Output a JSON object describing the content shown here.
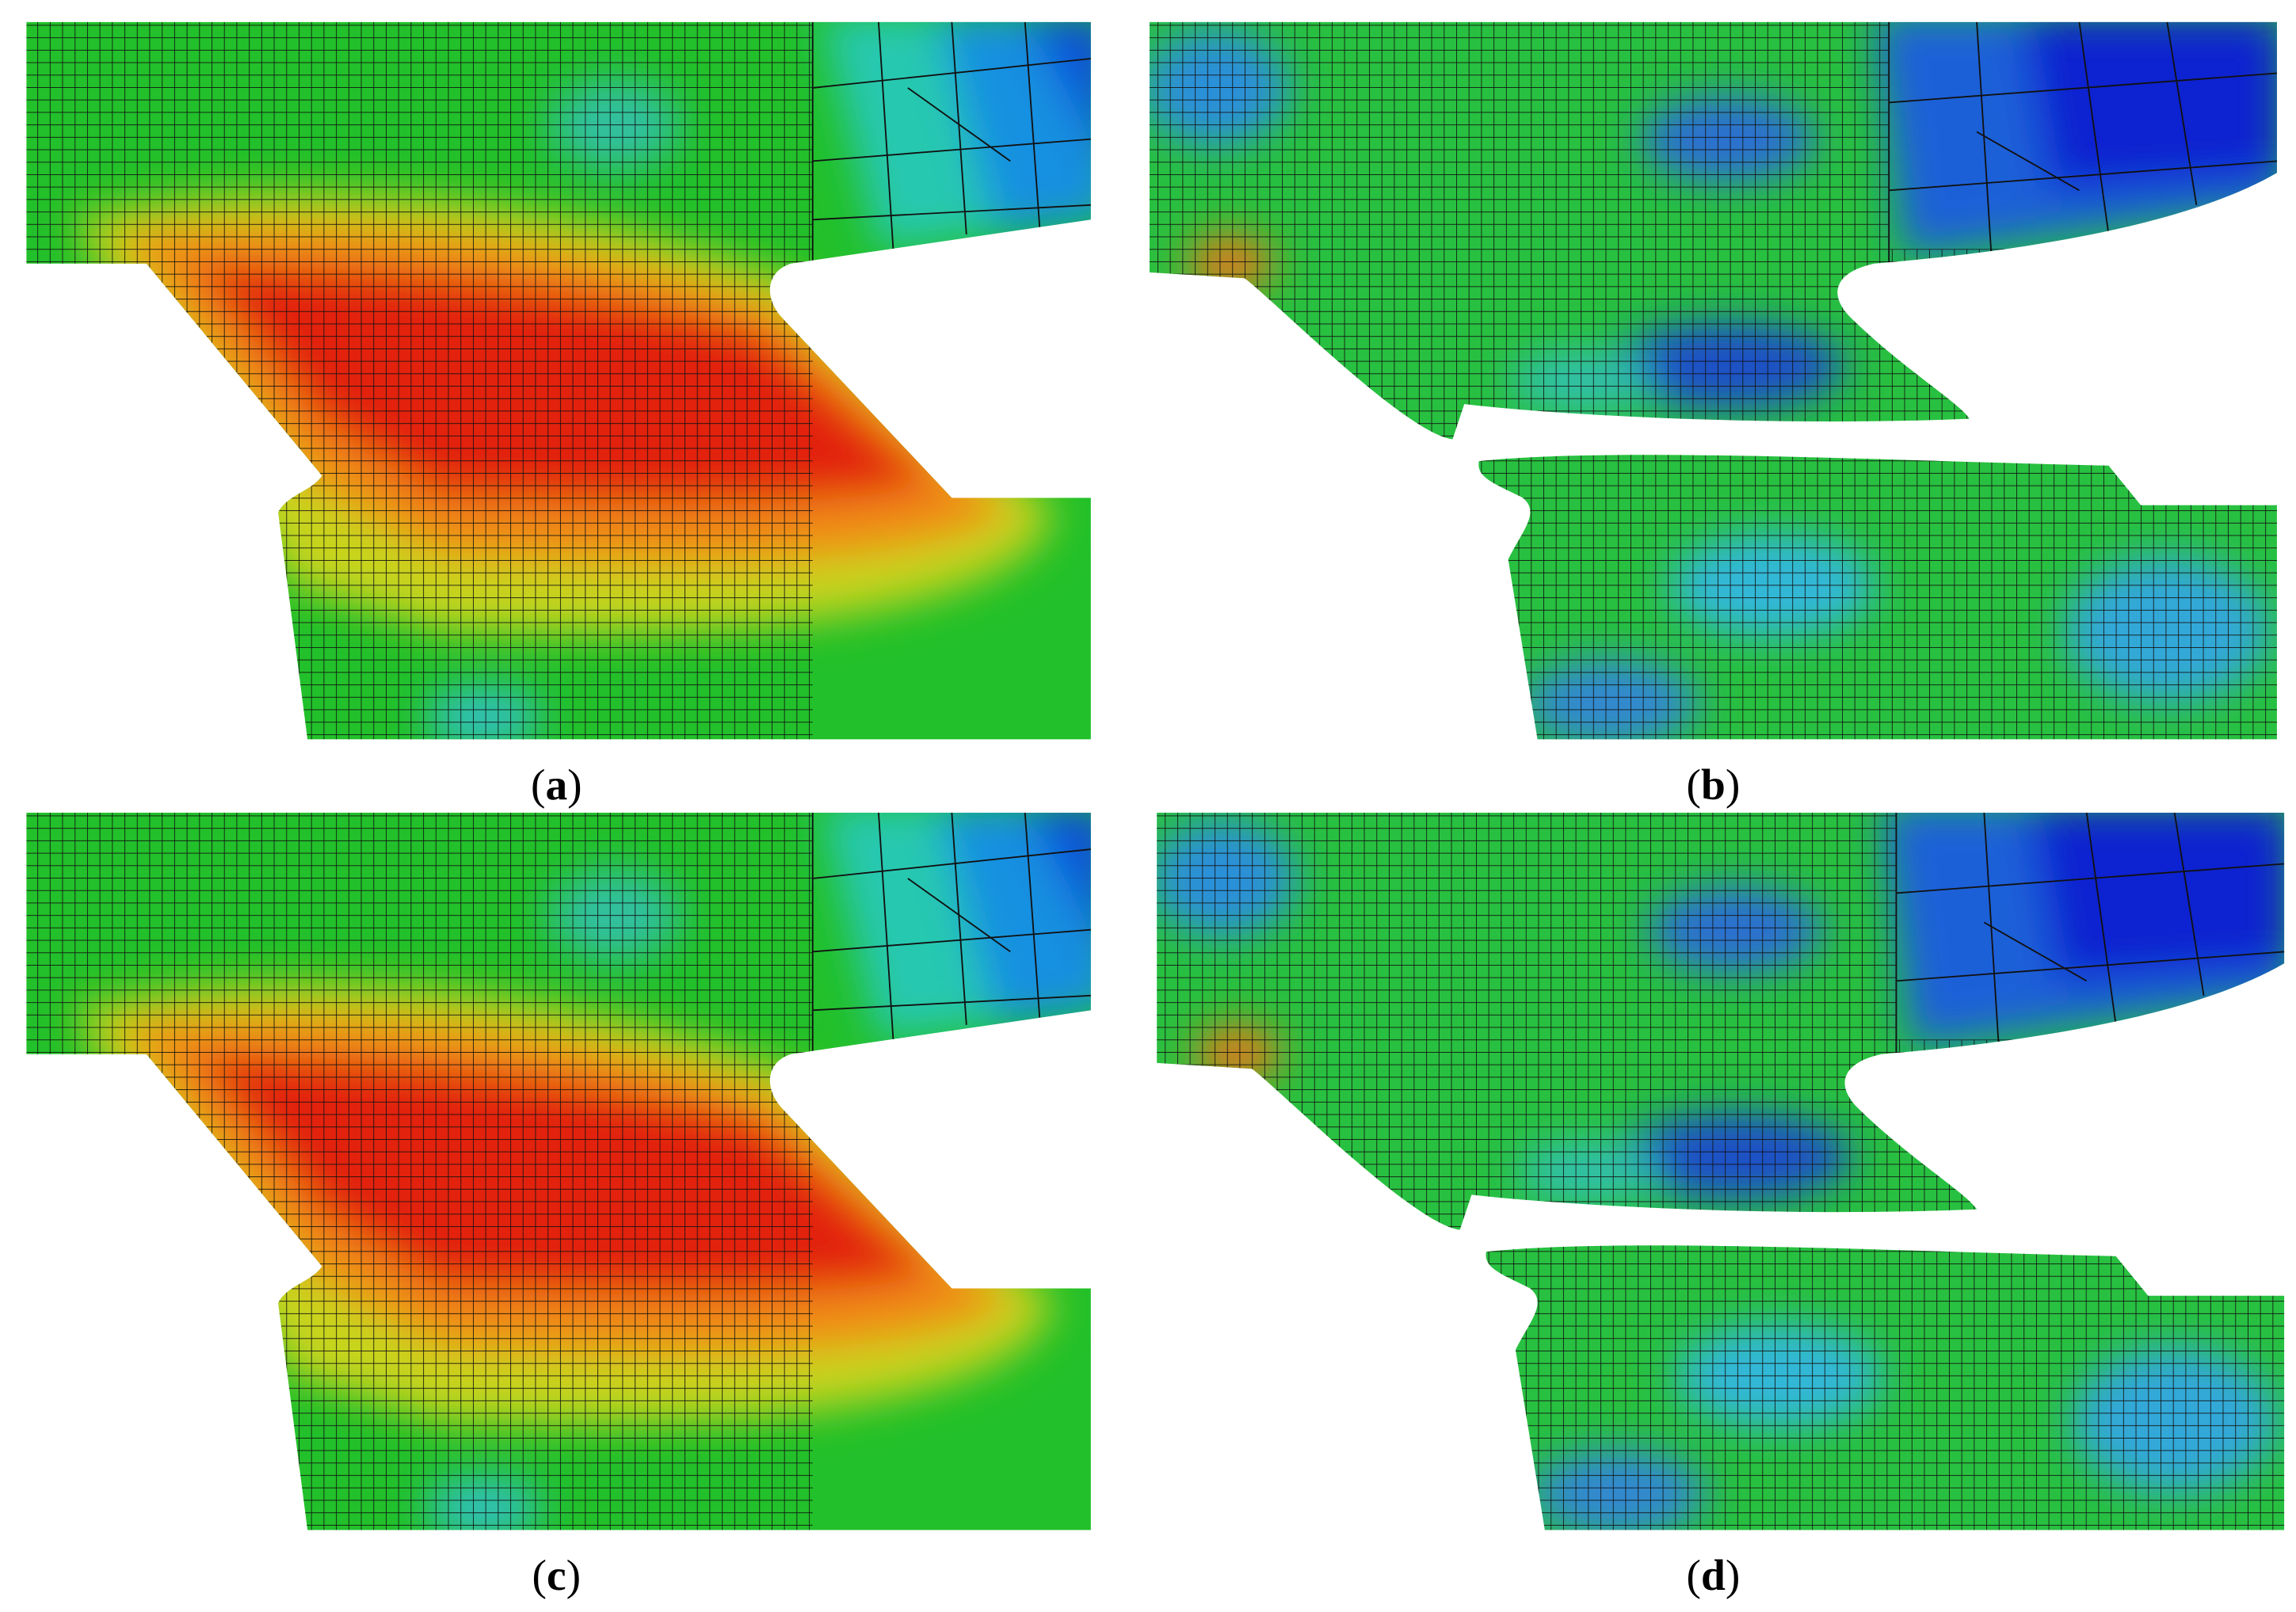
{
  "panels": [
    {
      "open": "(",
      "letter": "a",
      "close": ")"
    },
    {
      "open": "(",
      "letter": "b",
      "close": ")"
    },
    {
      "open": "(",
      "letter": "c",
      "close": ")"
    },
    {
      "open": "(",
      "letter": "d",
      "close": ")"
    }
  ]
}
